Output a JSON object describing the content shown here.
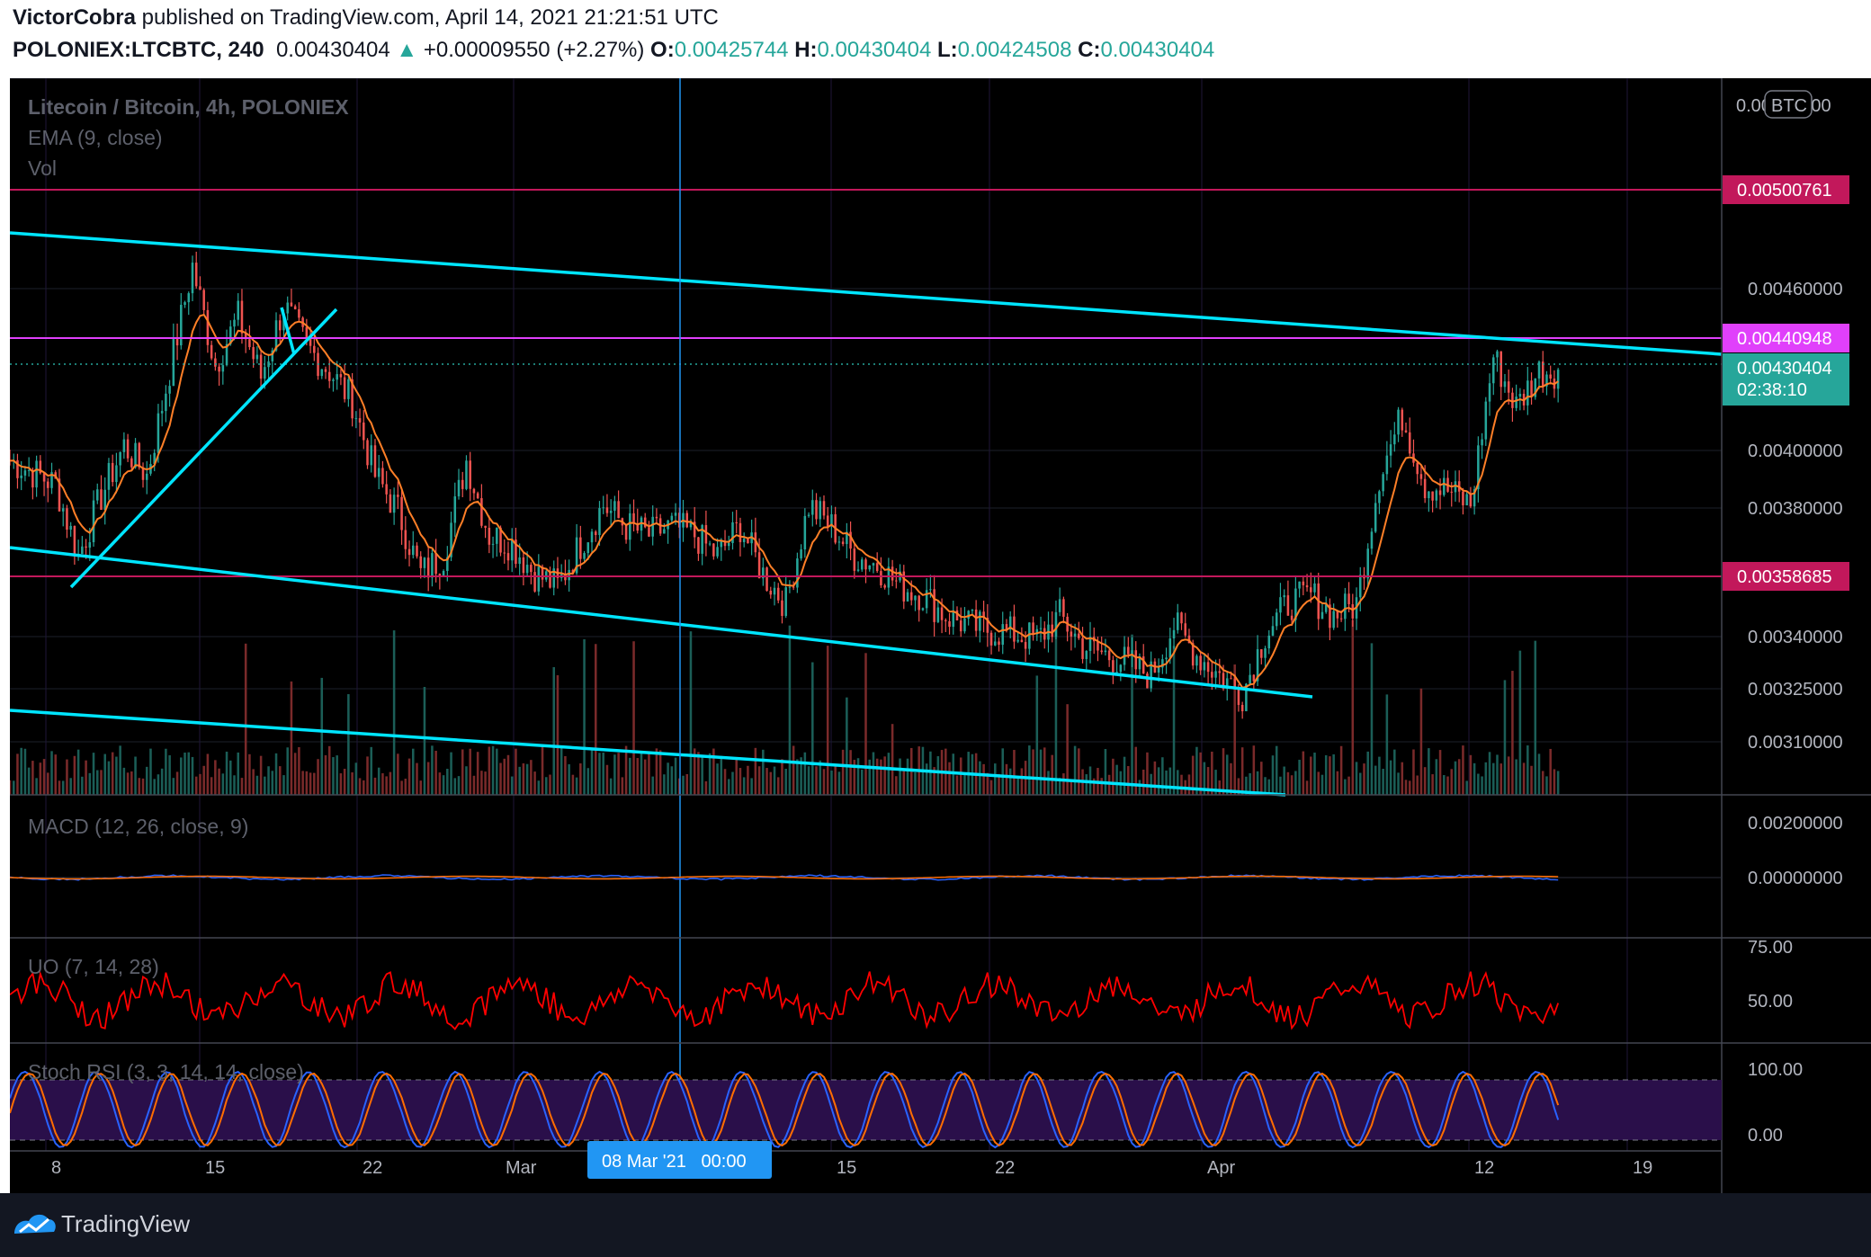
{
  "header": {
    "author": "VictorCobra",
    "published": " published on TradingView.com, April 14, 2021 21:21:51 UTC",
    "symbol": "POLONIEX:LTCBTC, 240",
    "last": "0.00430404",
    "change": "+0.00009550 (+2.27%)",
    "o_label": "O:",
    "o": "0.00425744",
    "h_label": "H:",
    "h": "0.00430404",
    "l_label": "L:",
    "l": "0.00424508",
    "c_label": "C:",
    "c": "0.00430404",
    "up_arrow": "▲"
  },
  "legend": {
    "title": "Litecoin / Bitcoin, 4h, POLONIEX",
    "ema": "EMA (9, close)",
    "vol": "Vol",
    "macd": "MACD (12, 26, close, 9)",
    "uo": "UO (7, 14, 28)",
    "stoch": "Stoch RSI (3, 3, 14, 14, close)"
  },
  "price_axis": {
    "currency": "BTC",
    "ticks": [
      "0.00480000",
      "0.00460000",
      "0.00400000",
      "0.00380000",
      "0.00340000",
      "0.00325000",
      "0.00310000"
    ]
  },
  "price_labels": [
    {
      "value": "0.00500761",
      "color": "#c2185b",
      "text_color": "#ffffff"
    },
    {
      "value": "0.00440948",
      "color": "#e040fb",
      "text_color": "#ffffff"
    },
    {
      "value": "0.00430404",
      "color": "#26a69a",
      "text_color": "#ffffff",
      "countdown": "02:38:10"
    },
    {
      "value": "0.00358685",
      "color": "#c2185b",
      "text_color": "#ffffff"
    }
  ],
  "macd_axis": {
    "ticks": [
      "0.00200000",
      "0.00000000"
    ]
  },
  "uo_axis": {
    "ticks": [
      "75.00",
      "50.00"
    ]
  },
  "stoch_axis": {
    "ticks": [
      "100.00",
      "0.00"
    ]
  },
  "time_axis": {
    "ticks": [
      "8",
      "15",
      "22",
      "Mar",
      "15",
      "22",
      "Apr",
      "12",
      "19"
    ],
    "crosshair_label": "08 Mar '21   00:00"
  },
  "footer": {
    "brand": "TradingView"
  },
  "colors": {
    "background": "#000000",
    "up": "#26a69a",
    "down": "#ef5350",
    "ema": "#ff7f27",
    "trendline": "#00e5ff",
    "resistance": "#c2185b",
    "magenta": "#e040fb",
    "uo": "#ff0000",
    "stoch_k": "#2962ff",
    "stoch_d": "#ff6d00",
    "crosshair": "#2196f3"
  },
  "chart_data": {
    "type": "candlestick",
    "title": "Litecoin / Bitcoin, 4h, POLONIEX",
    "x_dates": [
      "2021-02-06",
      "2021-04-22"
    ],
    "close_path": [
      [
        "2021-02-06",
        0.004
      ],
      [
        "2021-02-08",
        0.00392
      ],
      [
        "2021-02-09",
        0.00368
      ],
      [
        "2021-02-10",
        0.00388
      ],
      [
        "2021-02-11",
        0.00405
      ],
      [
        "2021-02-12",
        0.00395
      ],
      [
        "2021-02-13",
        0.0043
      ],
      [
        "2021-02-14",
        0.00465
      ],
      [
        "2021-02-15",
        0.00432
      ],
      [
        "2021-02-16",
        0.00448
      ],
      [
        "2021-02-17",
        0.00428
      ],
      [
        "2021-02-18",
        0.00452
      ],
      [
        "2021-02-19",
        0.00438
      ],
      [
        "2021-02-20",
        0.0043
      ],
      [
        "2021-02-21",
        0.0042
      ],
      [
        "2021-02-22",
        0.00395
      ],
      [
        "2021-02-23",
        0.00383
      ],
      [
        "2021-02-24",
        0.00362
      ],
      [
        "2021-02-25",
        0.00368
      ],
      [
        "2021-02-26",
        0.004
      ],
      [
        "2021-02-27",
        0.00375
      ],
      [
        "2021-02-28",
        0.00372
      ],
      [
        "2021-03-01",
        0.00362
      ],
      [
        "2021-03-02",
        0.00358
      ],
      [
        "2021-03-03",
        0.00372
      ],
      [
        "2021-03-04",
        0.00385
      ],
      [
        "2021-03-05",
        0.00378
      ],
      [
        "2021-03-06",
        0.00375
      ],
      [
        "2021-03-07",
        0.00378
      ],
      [
        "2021-03-08",
        0.00375
      ],
      [
        "2021-03-09",
        0.00368
      ],
      [
        "2021-03-10",
        0.00378
      ],
      [
        "2021-03-11",
        0.00362
      ],
      [
        "2021-03-12",
        0.00352
      ],
      [
        "2021-03-13",
        0.00385
      ],
      [
        "2021-03-14",
        0.00378
      ],
      [
        "2021-03-15",
        0.00368
      ],
      [
        "2021-03-16",
        0.00365
      ],
      [
        "2021-03-17",
        0.00358
      ],
      [
        "2021-03-18",
        0.00355
      ],
      [
        "2021-03-19",
        0.00348
      ],
      [
        "2021-03-20",
        0.00345
      ],
      [
        "2021-03-21",
        0.00343
      ],
      [
        "2021-03-22",
        0.00342
      ],
      [
        "2021-03-23",
        0.0034
      ],
      [
        "2021-03-24",
        0.00348
      ],
      [
        "2021-03-25",
        0.00338
      ],
      [
        "2021-03-26",
        0.00335
      ],
      [
        "2021-03-27",
        0.00332
      ],
      [
        "2021-03-28",
        0.00328
      ],
      [
        "2021-03-29",
        0.00345
      ],
      [
        "2021-03-30",
        0.00335
      ],
      [
        "2021-03-31",
        0.00328
      ],
      [
        "2021-04-01",
        0.00322
      ],
      [
        "2021-04-02",
        0.00342
      ],
      [
        "2021-04-03",
        0.00352
      ],
      [
        "2021-04-04",
        0.00355
      ],
      [
        "2021-04-05",
        0.00348
      ],
      [
        "2021-04-06",
        0.00352
      ],
      [
        "2021-04-07",
        0.00395
      ],
      [
        "2021-04-08",
        0.00415
      ],
      [
        "2021-04-09",
        0.00392
      ],
      [
        "2021-04-10",
        0.0039
      ],
      [
        "2021-04-11",
        0.00385
      ],
      [
        "2021-04-12",
        0.00435
      ],
      [
        "2021-04-13",
        0.00418
      ],
      [
        "2021-04-14",
        0.0043
      ]
    ],
    "levels": [
      0.00500761,
      0.00440948,
      0.00358685
    ],
    "last_close": 0.00430404,
    "ylim": [
      0.00288,
      0.00528
    ]
  }
}
